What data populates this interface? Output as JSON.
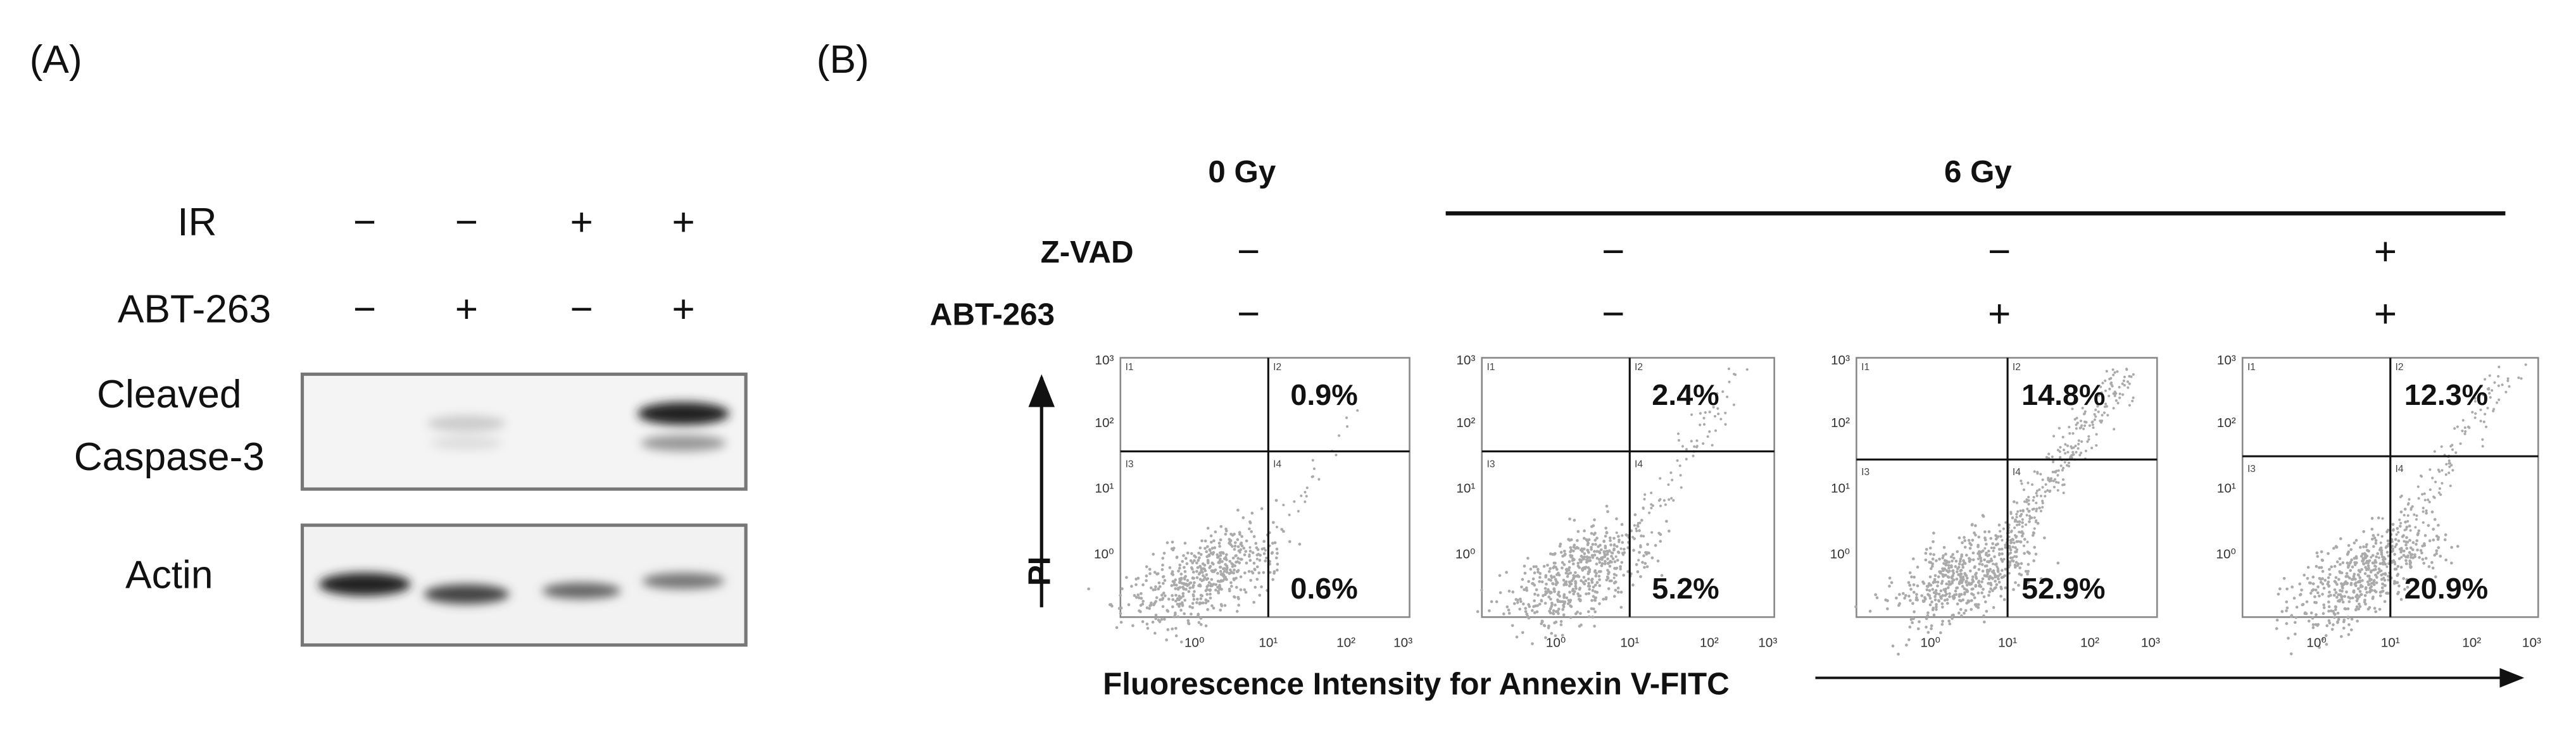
{
  "panel_a": {
    "label": "(A)",
    "rows": [
      {
        "name": "IR",
        "signs": [
          "−",
          "−",
          "+",
          "+"
        ]
      },
      {
        "name": "ABT-263",
        "signs": [
          "−",
          "+",
          "−",
          "+"
        ]
      }
    ],
    "blot_labels": [
      [
        "Cleaved",
        "Caspase-3"
      ],
      [
        "Actin"
      ]
    ]
  },
  "panel_b": {
    "label": "(B)",
    "groups": [
      "0 Gy",
      "6 Gy"
    ],
    "rows": [
      {
        "name": "Z-VAD",
        "signs": [
          "−",
          "−",
          "−",
          "+"
        ]
      },
      {
        "name": "ABT-263",
        "signs": [
          "−",
          "−",
          "+",
          "+"
        ]
      }
    ],
    "plots": [
      {
        "upper": "0.9%",
        "lower": "0.6%"
      },
      {
        "upper": "2.4%",
        "lower": "5.2%"
      },
      {
        "upper": "14.8%",
        "lower": "52.9%"
      },
      {
        "upper": "12.3%",
        "lower": "20.9%"
      }
    ],
    "quadrants": [
      "I1",
      "I2",
      "I3",
      "I4"
    ],
    "yticks": [
      "10³",
      "10²",
      "10¹",
      "10⁰"
    ],
    "xticks": [
      "10⁰",
      "10¹",
      "10²",
      "10³"
    ],
    "ylabel": "PI",
    "xlabel": "Fluorescence Intensity for Annexin V-FITC"
  }
}
